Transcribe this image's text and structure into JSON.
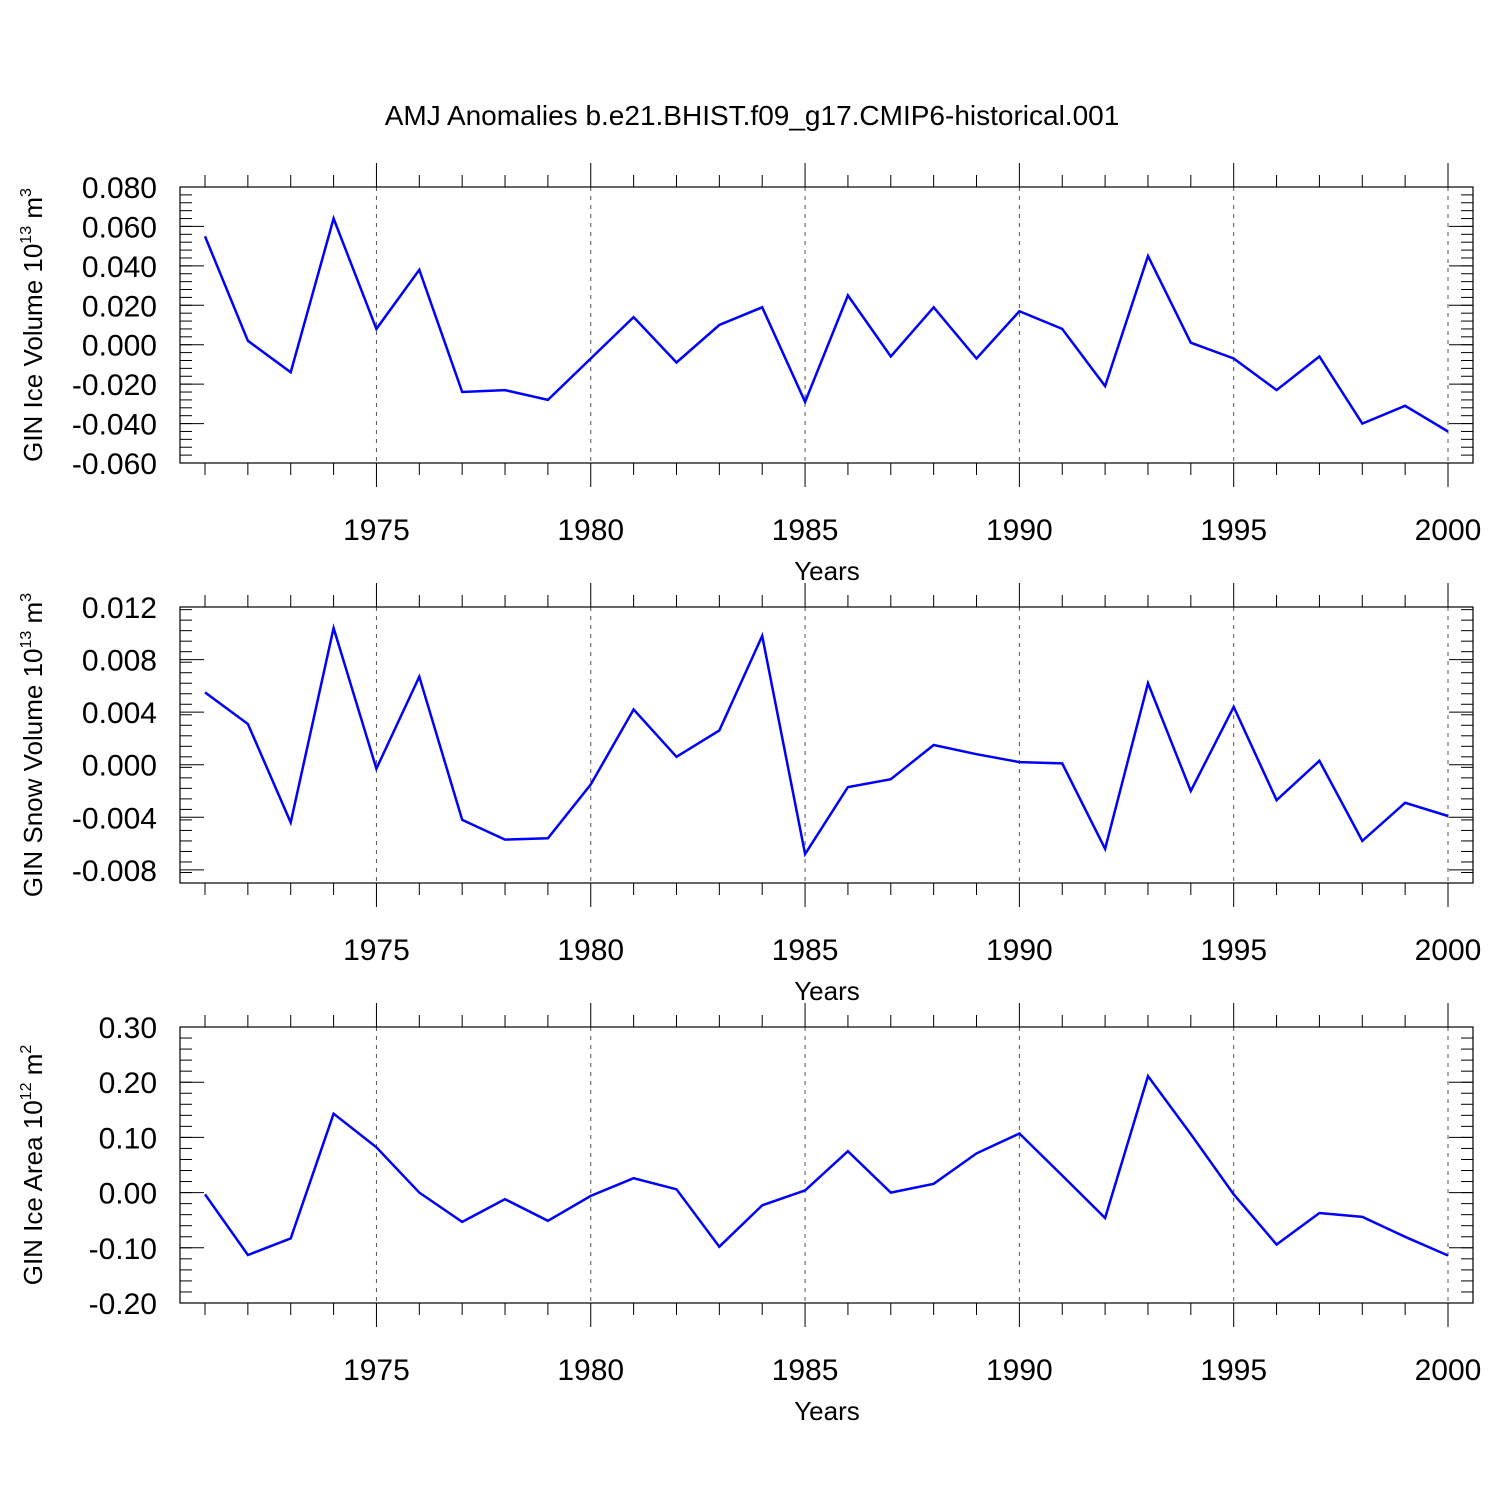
{
  "title": "AMJ Anomalies b.e21.BHIST.f09_g17.CMIP6-historical.001",
  "line_color": "#0000ff",
  "chart_data": [
    {
      "type": "line",
      "ylabel_text": "GIN Ice Volume 10",
      "ylabel_exp": "13",
      "ylabel_unit": " m",
      "ylabel_unit_exp": "3",
      "xlabel": "Years",
      "xlim": [
        1971,
        2000
      ],
      "ylim": [
        -0.06,
        0.08
      ],
      "y_ticks": [
        0.08,
        0.06,
        0.04,
        0.02,
        0.0,
        -0.02,
        -0.04,
        -0.06
      ],
      "y_tick_labels": [
        "0.080",
        "0.060",
        "0.040",
        "0.020",
        "0.000",
        "-0.020",
        "-0.040",
        "-0.060"
      ],
      "x_ticks": [
        1975,
        1980,
        1985,
        1990,
        1995,
        2000
      ],
      "x_tick_labels": [
        "1975",
        "1980",
        "1985",
        "1990",
        "1995",
        "2000"
      ],
      "x": [
        1971,
        1972,
        1973,
        1974,
        1975,
        1976,
        1977,
        1978,
        1979,
        1980,
        1981,
        1982,
        1983,
        1984,
        1985,
        1986,
        1987,
        1988,
        1989,
        1990,
        1991,
        1992,
        1993,
        1994,
        1995,
        1996,
        1997,
        1998,
        1999,
        2000
      ],
      "values": [
        0.055,
        0.002,
        -0.014,
        0.064,
        0.008,
        0.038,
        -0.024,
        -0.023,
        -0.028,
        -0.007,
        0.014,
        -0.009,
        0.01,
        0.019,
        -0.029,
        0.025,
        -0.006,
        0.019,
        -0.007,
        0.017,
        0.008,
        -0.021,
        0.045,
        0.001,
        -0.007,
        -0.023,
        -0.006,
        -0.04,
        -0.031,
        -0.044
      ]
    },
    {
      "type": "line",
      "ylabel_text": "GIN Snow Volume 10",
      "ylabel_exp": "13",
      "ylabel_unit": " m",
      "ylabel_unit_exp": "3",
      "xlabel": "Years",
      "xlim": [
        1971,
        2000
      ],
      "ylim": [
        -0.009,
        0.012
      ],
      "y_ticks": [
        0.012,
        0.008,
        0.004,
        0.0,
        -0.004,
        -0.008
      ],
      "y_tick_labels": [
        "0.012",
        "0.008",
        "0.004",
        "0.000",
        "-0.004",
        "-0.008"
      ],
      "x_ticks": [
        1975,
        1980,
        1985,
        1990,
        1995,
        2000
      ],
      "x_tick_labels": [
        "1975",
        "1980",
        "1985",
        "1990",
        "1995",
        "2000"
      ],
      "x": [
        1971,
        1972,
        1973,
        1974,
        1975,
        1976,
        1977,
        1978,
        1979,
        1980,
        1981,
        1982,
        1983,
        1984,
        1985,
        1986,
        1987,
        1988,
        1989,
        1990,
        1991,
        1992,
        1993,
        1994,
        1995,
        1996,
        1997,
        1998,
        1999,
        2000
      ],
      "values": [
        0.0055,
        0.0031,
        -0.0044,
        0.0104,
        -0.0003,
        0.0067,
        -0.0042,
        -0.0057,
        -0.0056,
        -0.0015,
        0.0042,
        0.0006,
        0.0026,
        0.0098,
        -0.0068,
        -0.0017,
        -0.0011,
        0.0015,
        0.0008,
        0.0002,
        0.0001,
        -0.0064,
        0.0062,
        -0.002,
        0.0044,
        -0.0027,
        0.0003,
        -0.0058,
        -0.0029,
        -0.0039
      ]
    },
    {
      "type": "line",
      "ylabel_text": "GIN Ice Area 10",
      "ylabel_exp": "12",
      "ylabel_unit": " m",
      "ylabel_unit_exp": "2",
      "xlabel": "Years",
      "xlim": [
        1971,
        2000
      ],
      "ylim": [
        -0.2,
        0.3
      ],
      "y_ticks": [
        0.3,
        0.2,
        0.1,
        0.0,
        -0.1,
        -0.2
      ],
      "y_tick_labels": [
        "0.30",
        "0.20",
        "0.10",
        "0.00",
        "-0.10",
        "-0.20"
      ],
      "x_ticks": [
        1975,
        1980,
        1985,
        1990,
        1995,
        2000
      ],
      "x_tick_labels": [
        "1975",
        "1980",
        "1985",
        "1990",
        "1995",
        "2000"
      ],
      "x": [
        1971,
        1972,
        1973,
        1974,
        1975,
        1976,
        1977,
        1978,
        1979,
        1980,
        1981,
        1982,
        1983,
        1984,
        1985,
        1986,
        1987,
        1988,
        1989,
        1990,
        1991,
        1992,
        1993,
        1994,
        1995,
        1996,
        1997,
        1998,
        1999,
        2000
      ],
      "values": [
        -0.003,
        -0.113,
        -0.083,
        0.143,
        0.082,
        0.0,
        -0.053,
        -0.012,
        -0.051,
        -0.006,
        0.026,
        0.006,
        -0.098,
        -0.023,
        0.004,
        0.075,
        0.0,
        0.016,
        0.071,
        0.107,
        0.031,
        -0.046,
        0.211,
        0.106,
        -0.003,
        -0.094,
        -0.037,
        -0.044,
        -0.08,
        -0.114
      ]
    }
  ]
}
